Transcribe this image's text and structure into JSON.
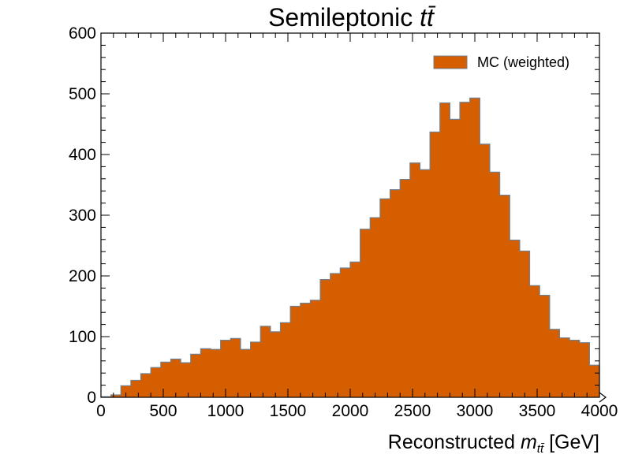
{
  "chart_data": {
    "type": "bar",
    "title": "Semileptonic",
    "title_math": "tt̄",
    "xlabel": "Reconstructed",
    "xlabel_math": "m",
    "xlabel_sub": "tt̄",
    "xlabel_unit": "[GeV]",
    "ylabel": "",
    "xlim": [
      0,
      4000
    ],
    "ylim": [
      0,
      600
    ],
    "xticks": [
      0,
      500,
      1000,
      1500,
      2000,
      2500,
      3000,
      3500,
      4000
    ],
    "yticks": [
      0,
      100,
      200,
      300,
      400,
      500,
      600
    ],
    "legend_placement": "top-right",
    "grid": false,
    "series": [
      {
        "name": "MC (weighted)",
        "color": "#d55e00",
        "edge_color": "#708090",
        "bin_edges": [
          0,
          80,
          160,
          240,
          320,
          400,
          480,
          560,
          640,
          720,
          800,
          880,
          960,
          1040,
          1120,
          1200,
          1280,
          1360,
          1440,
          1520,
          1600,
          1680,
          1760,
          1840,
          1920,
          2000,
          2080,
          2160,
          2240,
          2320,
          2400,
          2480,
          2560,
          2640,
          2720,
          2800,
          2880,
          2960,
          3040,
          3120,
          3200,
          3280,
          3360,
          3440,
          3520,
          3600,
          3680,
          3760,
          3840,
          3920,
          4000
        ],
        "values": [
          1,
          4,
          19,
          28,
          39,
          49,
          58,
          63,
          57,
          71,
          80,
          79,
          94,
          97,
          79,
          91,
          117,
          108,
          123,
          150,
          155,
          160,
          194,
          204,
          213,
          223,
          277,
          296,
          327,
          342,
          359,
          386,
          375,
          437,
          485,
          458,
          486,
          493,
          417,
          371,
          333,
          259,
          241,
          184,
          168,
          112,
          98,
          94,
          90,
          53
        ]
      }
    ]
  }
}
